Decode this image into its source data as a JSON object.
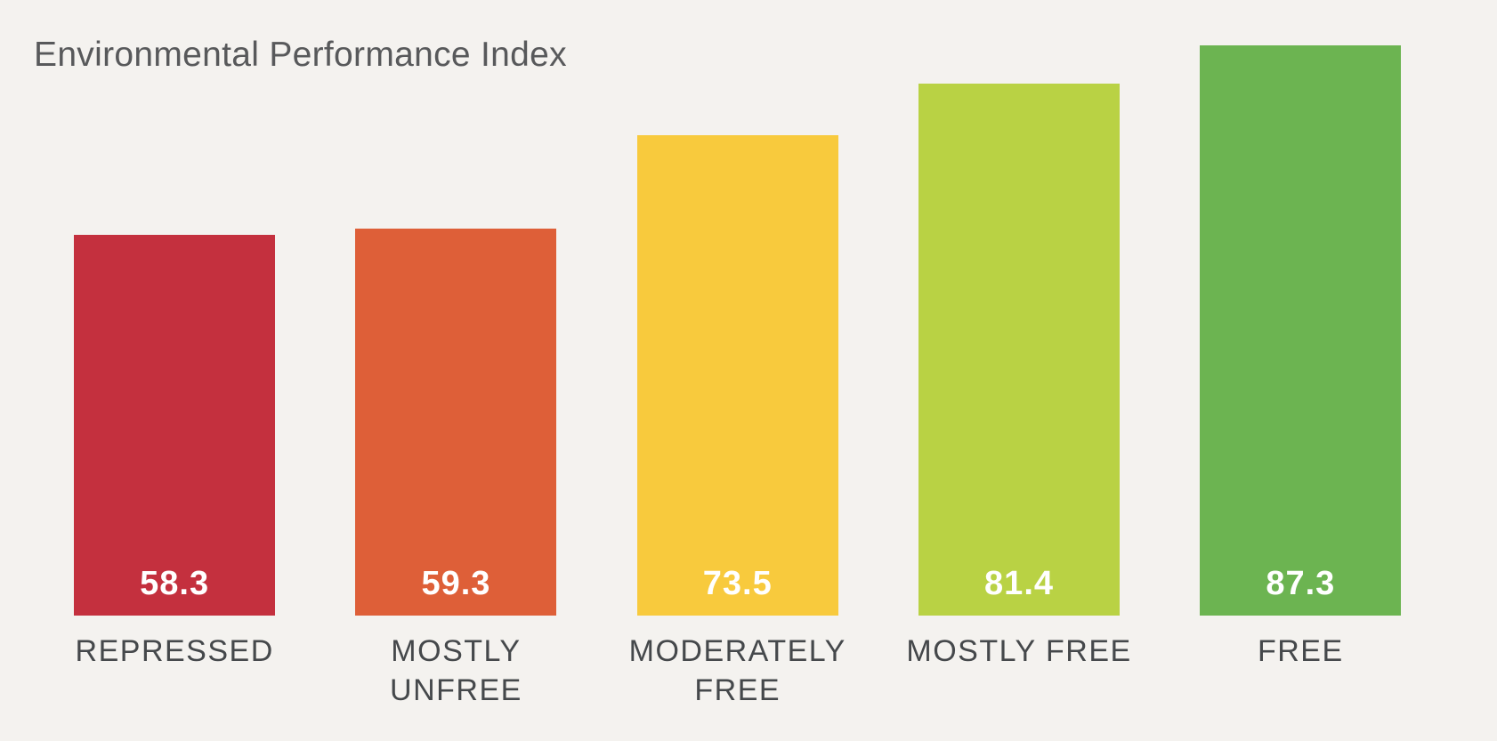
{
  "page": {
    "background_color": "#f4f2ef"
  },
  "header": {
    "title": "Environmental Performance Index",
    "title_color": "#58595b"
  },
  "chart_data": {
    "type": "bar",
    "title": "Environmental Performance Index",
    "categories": [
      "REPRESSED",
      "MOSTLY UNFREE",
      "MODERATELY FREE",
      "MOSTLY FREE",
      "FREE"
    ],
    "values": [
      58.3,
      59.3,
      73.5,
      81.4,
      87.3
    ],
    "value_labels": [
      "58.3",
      "59.3",
      "73.5",
      "81.4",
      "87.3"
    ],
    "category_label_lines": [
      [
        "REPRESSED"
      ],
      [
        "MOSTLY",
        "UNFREE"
      ],
      [
        "MODERATELY",
        "FREE"
      ],
      [
        "MOSTLY FREE"
      ],
      [
        "FREE"
      ]
    ],
    "bar_colors": [
      "#c4303e",
      "#de5f38",
      "#f8ca3d",
      "#b9d244",
      "#6cb451"
    ],
    "value_label_color": "#ffffff",
    "category_label_color": "#45484b",
    "xlabel": "",
    "ylabel": "",
    "ylim": [
      0,
      87.3
    ],
    "grid": false,
    "legend": false,
    "axes_shown": false,
    "value_labels_position": "inside-bottom"
  }
}
